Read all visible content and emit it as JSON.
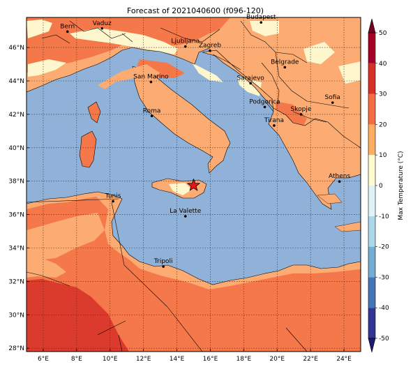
{
  "title": "Forecast of 2021040600 (f096-120)",
  "map": {
    "lon_range": [
      5,
      25
    ],
    "lat_range": [
      27.8,
      47.8
    ],
    "lon_ticks": [
      "6°E",
      "8°E",
      "10°E",
      "12°E",
      "14°E",
      "16°E",
      "18°E",
      "20°E",
      "22°E",
      "24°E"
    ],
    "lat_ticks": [
      "28°N",
      "30°N",
      "32°N",
      "34°N",
      "36°N",
      "38°N",
      "40°N",
      "42°N",
      "44°N",
      "46°N"
    ],
    "gridlines": true
  },
  "cities": [
    {
      "name": "Bern",
      "lon": 7.45,
      "lat": 46.95
    },
    {
      "name": "Vaduz",
      "lon": 9.52,
      "lat": 47.14
    },
    {
      "name": "Budapest",
      "lon": 19.04,
      "lat": 47.5
    },
    {
      "name": "Ljubljana",
      "lon": 14.51,
      "lat": 46.06
    },
    {
      "name": "Zagreb",
      "lon": 15.98,
      "lat": 45.81
    },
    {
      "name": "Belgrade",
      "lon": 20.46,
      "lat": 44.82
    },
    {
      "name": "San Marino",
      "lon": 12.45,
      "lat": 43.94
    },
    {
      "name": "Sarajevo",
      "lon": 18.41,
      "lat": 43.86
    },
    {
      "name": "Sofia",
      "lon": 23.32,
      "lat": 42.7
    },
    {
      "name": "Podgorica",
      "lon": 19.26,
      "lat": 42.44
    },
    {
      "name": "Skopje",
      "lon": 21.43,
      "lat": 42.0
    },
    {
      "name": "Roma",
      "lon": 12.5,
      "lat": 41.9
    },
    {
      "name": "Tirana",
      "lon": 19.82,
      "lat": 41.33
    },
    {
      "name": "Athens",
      "lon": 23.73,
      "lat": 37.98
    },
    {
      "name": "Tunis",
      "lon": 10.18,
      "lat": 36.8
    },
    {
      "name": "La Valette",
      "lon": 14.51,
      "lat": 35.9
    },
    {
      "name": "Tripoli",
      "lon": 13.19,
      "lat": 32.89
    }
  ],
  "marker": {
    "symbol": "star",
    "lon": 15.0,
    "lat": 37.75,
    "color": "#e8141c"
  },
  "colorbar": {
    "label": "Max Temperature (°C)",
    "ticks": [
      50,
      40,
      30,
      20,
      10,
      0,
      -10,
      -20,
      -30,
      -40,
      -50
    ],
    "range": [
      -50,
      50
    ],
    "extend": "both",
    "levels": [
      {
        "from": -50,
        "to": -40,
        "color": "#313695"
      },
      {
        "from": -40,
        "to": -30,
        "color": "#4575b4"
      },
      {
        "from": -30,
        "to": -20,
        "color": "#74add1"
      },
      {
        "from": -20,
        "to": -10,
        "color": "#abd9e9"
      },
      {
        "from": -10,
        "to": 0,
        "color": "#e0f3f8"
      },
      {
        "from": 0,
        "to": 10,
        "color": "#fffcd0"
      },
      {
        "from": 10,
        "to": 20,
        "color": "#fdae61"
      },
      {
        "from": 20,
        "to": 30,
        "color": "#f46d43"
      },
      {
        "from": 30,
        "to": 40,
        "color": "#d73027"
      },
      {
        "from": 40,
        "to": 50,
        "color": "#a50026"
      }
    ],
    "under_color": "#1b1b70",
    "over_color": "#7a0020"
  },
  "colors": {
    "sea": "#90b2d8",
    "hot": "#f4784a",
    "warm": "#fcab72",
    "mild": "#fef6cc",
    "very_hot": "#da3b2d"
  }
}
